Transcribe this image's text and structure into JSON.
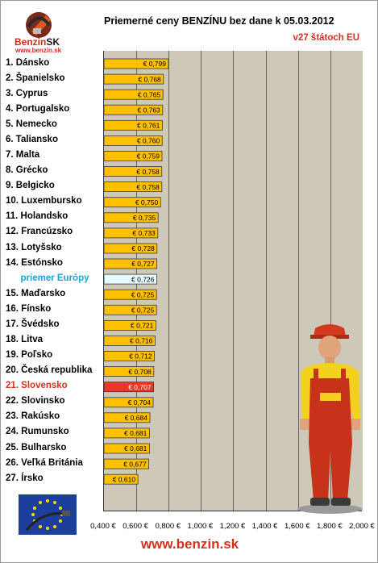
{
  "header": {
    "title": "Priemerné ceny BENZÍNU bez dane k 05.03.2012",
    "subtitle": "v27 štátoch EU"
  },
  "logo": {
    "brand_a": "Benzin",
    "brand_b": "SK",
    "url": "www.benzin.sk"
  },
  "footer": {
    "url": "www.benzin.sk"
  },
  "colors": {
    "bar": "#ffc000",
    "average_bar": "#e6fbff",
    "highlight_bar": "#e8382a",
    "plot_background": "#cdc8b8",
    "gridline": "#666666"
  },
  "chart_data": {
    "type": "bar",
    "orientation": "horizontal",
    "title": "Priemerné ceny BENZÍNU bez dane k 05.03.2012",
    "subtitle": "v27 štátoch EU",
    "xlim": [
      0.4,
      2.0
    ],
    "xticks": [
      0.4,
      0.6,
      0.8,
      1.0,
      1.2,
      1.4,
      1.6,
      1.8,
      2.0
    ],
    "xtick_labels": [
      "0,400 €",
      "0,600 €",
      "0,800 €",
      "1,000 €",
      "1,200 €",
      "1,400 €",
      "1,600 €",
      "1,800 €",
      "2,000 €"
    ],
    "grid": true,
    "categories": [
      "1. Dánsko",
      "2. Španielsko",
      "3. Cyprus",
      "4. Portugalsko",
      "5. Nemecko",
      "6. Taliansko",
      "7. Malta",
      "8. Grécko",
      "9. Belgicko",
      "10. Luxembursko",
      "11. Holandsko",
      "12. Francúzsko",
      "13. Lotyšsko",
      "14. Estónsko",
      "priemer Európy",
      "15. Maďarsko",
      "16. Fínsko",
      "17. Švédsko",
      "18. Litva",
      "19. Poľsko",
      "20. Česká republika",
      "21. Slovensko",
      "22. Slovinsko",
      "23. Rakúsko",
      "24. Rumunsko",
      "25. Bulharsko",
      "26. Veľká Británia",
      "27. Írsko"
    ],
    "values": [
      0.799,
      0.768,
      0.765,
      0.763,
      0.761,
      0.76,
      0.759,
      0.758,
      0.758,
      0.75,
      0.735,
      0.733,
      0.728,
      0.727,
      0.726,
      0.725,
      0.725,
      0.721,
      0.716,
      0.712,
      0.708,
      0.707,
      0.704,
      0.684,
      0.681,
      0.681,
      0.677,
      0.61
    ],
    "value_labels": [
      "€ 0,799",
      "€ 0,768",
      "€ 0,765",
      "€ 0,763",
      "€ 0,761",
      "€ 0,760",
      "€ 0,759",
      "€ 0,758",
      "€ 0,758",
      "€ 0,750",
      "€ 0,735",
      "€ 0,733",
      "€ 0,728",
      "€ 0,727",
      "€ 0,726",
      "€ 0,725",
      "€ 0,725",
      "€ 0,721",
      "€ 0,716",
      "€ 0,712",
      "€ 0,708",
      "€ 0,707",
      "€ 0,704",
      "€ 0,684",
      "€ 0,681",
      "€ 0,681",
      "€ 0,677",
      "€ 0,610"
    ],
    "average_index": 14,
    "highlight_index": 21
  }
}
